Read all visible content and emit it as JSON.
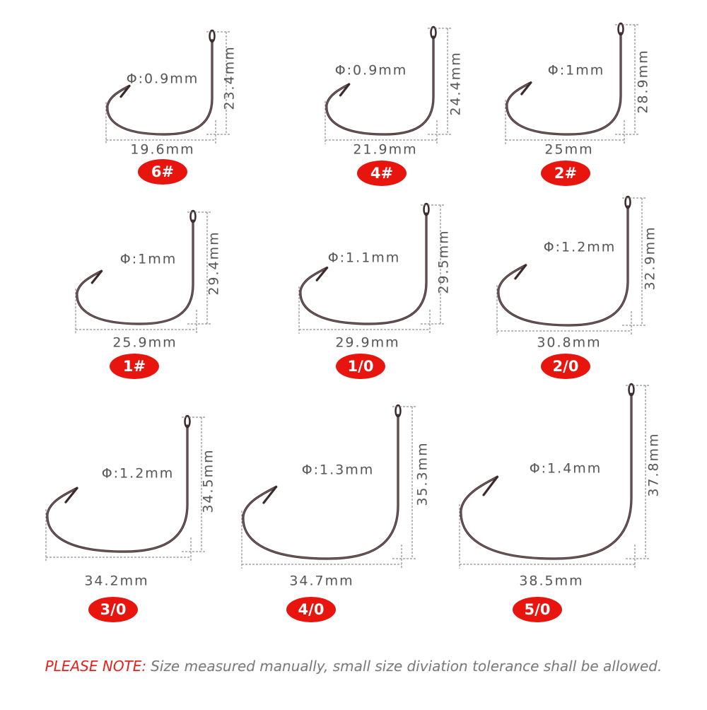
{
  "hooks": [
    {
      "size": "6#",
      "diameter": "Φ:0.9mm",
      "width": "19.6mm",
      "height": "23.4mm"
    },
    {
      "size": "4#",
      "diameter": "Φ:0.9mm",
      "width": "21.9mm",
      "height": "24.4mm"
    },
    {
      "size": "2#",
      "diameter": "Φ:1mm",
      "width": "25mm",
      "height": "28.9mm"
    },
    {
      "size": "1#",
      "diameter": "Φ:1mm",
      "width": "25.9mm",
      "height": "29.4mm"
    },
    {
      "size": "1/0",
      "diameter": "Φ:1.1mm",
      "width": "29.9mm",
      "height": "29.5mm"
    },
    {
      "size": "2/0",
      "diameter": "Φ:1.2mm",
      "width": "30.8mm",
      "height": "32.9mm"
    },
    {
      "size": "3/0",
      "diameter": "Φ:1.2mm",
      "width": "34.2mm",
      "height": "34.5mm"
    },
    {
      "size": "4/0",
      "diameter": "Φ:1.3mm",
      "width": "34.7mm",
      "height": "35.3mm"
    },
    {
      "size": "5/0",
      "diameter": "Φ:1.4mm",
      "width": "38.5mm",
      "height": "37.8mm"
    }
  ],
  "note": {
    "label": "PLEASE NOTE:",
    "text": "Size measured manually, small size diviation tolerance shall be allowed."
  }
}
